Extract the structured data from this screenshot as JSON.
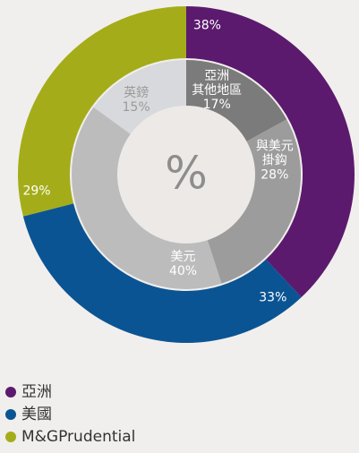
{
  "chart_data": {
    "type": "donut",
    "center_label": "%",
    "rings": [
      {
        "categories": [
          "亞洲",
          "美國",
          "M&GPrudential"
        ],
        "values": [
          38,
          33,
          29
        ],
        "value_labels": [
          "38%",
          "33%",
          "29%"
        ],
        "colors": [
          "#5b1a6e",
          "#0b5494",
          "#a4ad19"
        ],
        "label_colors": [
          "#ffffff",
          "#ffffff",
          "#ffffff"
        ]
      },
      {
        "categories": [
          [
            "亞洲",
            "其他地區"
          ],
          [
            "與美元",
            "掛鈎"
          ],
          [
            "美元"
          ],
          [
            "英鎊"
          ]
        ],
        "values": [
          17,
          28,
          40,
          15
        ],
        "value_labels": [
          "17%",
          "28%",
          "40%",
          "15%"
        ],
        "colors": [
          "#7b7b7b",
          "#9c9c9c",
          "#bcbcbc",
          "#d8d9dc"
        ],
        "label_colors": [
          "#ffffff",
          "#ffffff",
          "#ffffff",
          "#9a9a9a"
        ]
      }
    ]
  }
}
